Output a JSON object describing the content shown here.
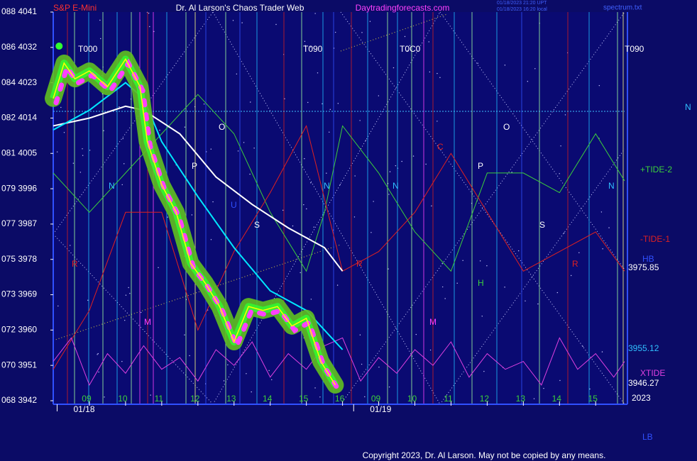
{
  "chart_data": {
    "type": "line",
    "title": "Dr. Al Larson's Chaos Trader Web",
    "instrument": "S&P E-Mini",
    "site": "Daytradingforecasts.com",
    "file": "spectrum.txt",
    "timestamps": [
      "01/18/2023 21:20 UPT",
      "01/18/2023 16:20 local"
    ],
    "copyright": "Copyright 2023, Dr. Al Larson. May not be copied by any means.",
    "ylim": [
      3942,
      4041
    ],
    "yticks": [
      {
        "value": 4041,
        "label": "088 4041"
      },
      {
        "value": 4032,
        "label": "086 4032"
      },
      {
        "value": 4023,
        "label": "084 4023"
      },
      {
        "value": 4014,
        "label": "082 4014"
      },
      {
        "value": 4005,
        "label": "081 4005"
      },
      {
        "value": 3996,
        "label": "079 3996"
      },
      {
        "value": 3987,
        "label": "077 3987"
      },
      {
        "value": 3978,
        "label": "075 3978"
      },
      {
        "value": 3969,
        "label": "073 3969"
      },
      {
        "value": 3960,
        "label": "072 3960"
      },
      {
        "value": 3951,
        "label": "070 3951"
      },
      {
        "value": 3942,
        "label": "068 3942"
      }
    ],
    "xlim": [
      0,
      15.8
    ],
    "xticks": [
      {
        "value": 1,
        "label": "09"
      },
      {
        "value": 2,
        "label": "10"
      },
      {
        "value": 3,
        "label": "11"
      },
      {
        "value": 4,
        "label": "12"
      },
      {
        "value": 5,
        "label": "13"
      },
      {
        "value": 6,
        "label": "14"
      },
      {
        "value": 7,
        "label": "15"
      },
      {
        "value": 8,
        "label": "16"
      },
      {
        "value": 9,
        "label": "09"
      },
      {
        "value": 10,
        "label": "10"
      },
      {
        "value": 11,
        "label": "11"
      },
      {
        "value": 12,
        "label": "12"
      },
      {
        "value": 13,
        "label": "13"
      },
      {
        "value": 14,
        "label": "14"
      },
      {
        "value": 15,
        "label": "15"
      }
    ],
    "dates": [
      {
        "value": 0.5,
        "label": "01/18"
      },
      {
        "value": 8.7,
        "label": "01/19"
      }
    ],
    "reference_line": 4015.7,
    "series": [
      {
        "name": "+TIDE-2",
        "color": "#3ccf3c",
        "x": [
          0,
          1,
          2,
          3,
          4,
          5,
          6,
          7,
          7.5,
          8,
          9,
          10,
          11,
          12,
          13,
          14,
          15,
          15.8
        ],
        "values": [
          4000,
          3990,
          4000,
          4010,
          4020,
          4010,
          3990,
          3975,
          3990,
          4012,
          4000,
          3985,
          3975,
          4000,
          4000,
          3995,
          4010,
          3998
        ]
      },
      {
        "name": "-TIDE-1",
        "color": "#e02020",
        "x": [
          0,
          1,
          2,
          3,
          4,
          5,
          6,
          7,
          8,
          9,
          10,
          11,
          12,
          13,
          14,
          15,
          15.8
        ],
        "values": [
          3950,
          3965,
          3990,
          3990,
          3960,
          3980,
          3995,
          4012,
          3975,
          3980,
          3990,
          4005,
          3990,
          3975,
          3980,
          3985,
          3975
        ]
      },
      {
        "name": "XTIDE",
        "color": "#e040e0",
        "x": [
          0,
          0.5,
          1,
          1.5,
          2,
          2.5,
          3,
          3.5,
          4,
          4.5,
          5,
          5.5,
          6,
          6.5,
          7,
          7.5,
          8,
          8.5,
          9,
          9.5,
          10,
          10.5,
          11,
          11.5,
          12,
          12.5,
          13,
          13.5,
          14,
          14.5,
          15,
          15.5,
          15.8
        ],
        "values": [
          3952,
          3958,
          3946,
          3954,
          3949,
          3956,
          3950,
          3953,
          3947,
          3955,
          3951,
          3957,
          3948,
          3954,
          3950,
          3956,
          3958,
          3947,
          3953,
          3949,
          3955,
          3951,
          3957,
          3948,
          3954,
          3950,
          3952,
          3946,
          3958,
          3950,
          3954,
          3948,
          3952
        ]
      },
      {
        "color": "#ffffff",
        "x": [
          0,
          1,
          2,
          2.5,
          3.5,
          4.5,
          5.5,
          6.5,
          7.5,
          8
        ],
        "values": [
          4012,
          4014,
          4017,
          4016,
          4010,
          3999,
          3992,
          3986,
          3981,
          3975
        ]
      },
      {
        "color": "#00e8ff",
        "x": [
          0,
          1,
          2,
          2.5,
          3,
          4,
          5,
          6,
          7,
          8
        ],
        "values": [
          4011,
          4016,
          4023,
          4019,
          4008,
          3994,
          3981,
          3970,
          3965,
          3955
        ]
      },
      {
        "color": "#ffff00",
        "x": [
          0,
          0.3,
          0.6,
          1,
          1.5,
          2,
          2.4,
          2.6,
          3,
          3.4,
          3.8,
          4.2,
          4.6,
          5,
          5.4,
          5.8,
          6.2,
          6.6,
          7,
          7.4,
          7.8
        ],
        "values": [
          4019,
          4028,
          4024,
          4026,
          4022,
          4029,
          4022,
          4008,
          3997,
          3990,
          3977,
          3972,
          3966,
          3957,
          3966,
          3965,
          3966,
          3961,
          3963,
          3952,
          3946
        ]
      }
    ],
    "annotations": [
      "T000",
      "T090",
      "T0C0",
      "T090",
      "N",
      "O",
      "P",
      "S",
      "R",
      "M",
      "U",
      "N",
      "N",
      "C",
      "P",
      "O",
      "S",
      "R",
      "R",
      "H",
      "M",
      "N",
      "N",
      "HB",
      "LB",
      "3975.85",
      "3955.12",
      "3946.27",
      "2023"
    ]
  }
}
